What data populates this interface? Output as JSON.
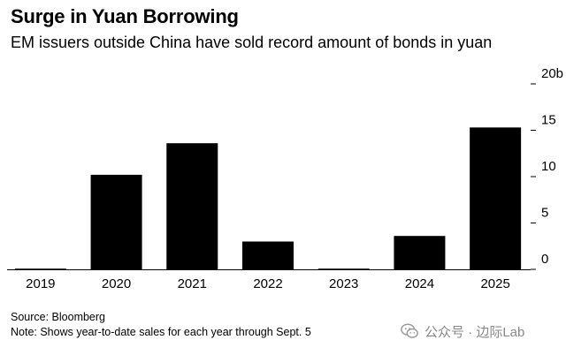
{
  "header": {
    "title": "Surge in Yuan Borrowing",
    "subtitle": "EM issuers outside China have sold record amount of bonds in yuan"
  },
  "footer": {
    "source": "Source: Bloomberg",
    "note": "Note: Shows year-to-date sales for each year through Sept. 5"
  },
  "watermark": {
    "text": "公众号 · 边际Lab",
    "icon": "wechat-icon"
  },
  "colors": {
    "bar": "#000000",
    "axis": "#000000",
    "watermark": "#888888"
  },
  "chart_data": {
    "type": "bar",
    "categories": [
      "2019",
      "2020",
      "2021",
      "2022",
      "2023",
      "2024",
      "2025"
    ],
    "values": [
      0.05,
      10.2,
      13.6,
      3.0,
      0.05,
      3.6,
      15.3
    ],
    "ylim": [
      0,
      20
    ],
    "yticks": [
      0,
      5,
      10,
      15,
      20
    ],
    "ytick_labels": [
      "0",
      "5",
      "10",
      "15",
      "20b"
    ],
    "yaxis_position": "right",
    "grid": false,
    "legend": "none"
  }
}
